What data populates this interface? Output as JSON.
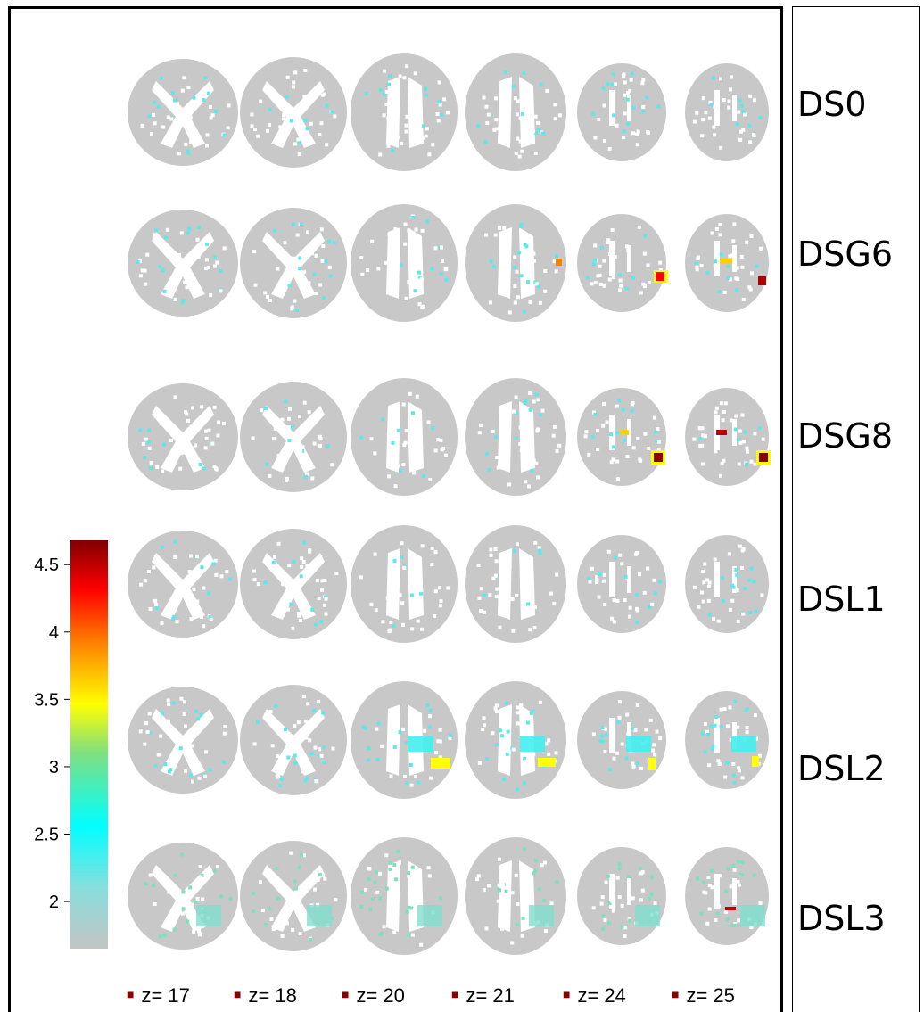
{
  "row_labels": [
    "DS0",
    "DSG6",
    "DSG8",
    "DSL1",
    "DSL2",
    "DSL3"
  ],
  "z_labels": [
    "z= 17",
    "z= 18",
    "z= 20",
    "z= 21",
    "z= 24",
    "z= 25"
  ],
  "colorbar": {
    "ticks": [
      "4.5",
      "4",
      "3.5",
      "3",
      "2.5",
      "2"
    ],
    "tick_values": [
      4.5,
      4,
      3.5,
      3,
      2.5,
      2
    ],
    "range": [
      1.65,
      4.68
    ],
    "colors": [
      "#c4c4c4",
      "#88dede",
      "#00ffff",
      "#7fe07f",
      "#ffff00",
      "#ff8000",
      "#ff0000",
      "#800000"
    ]
  },
  "colors": {
    "brain": "#c8c8c8",
    "white_matter": "#ffffff",
    "frame": "#000000"
  }
}
